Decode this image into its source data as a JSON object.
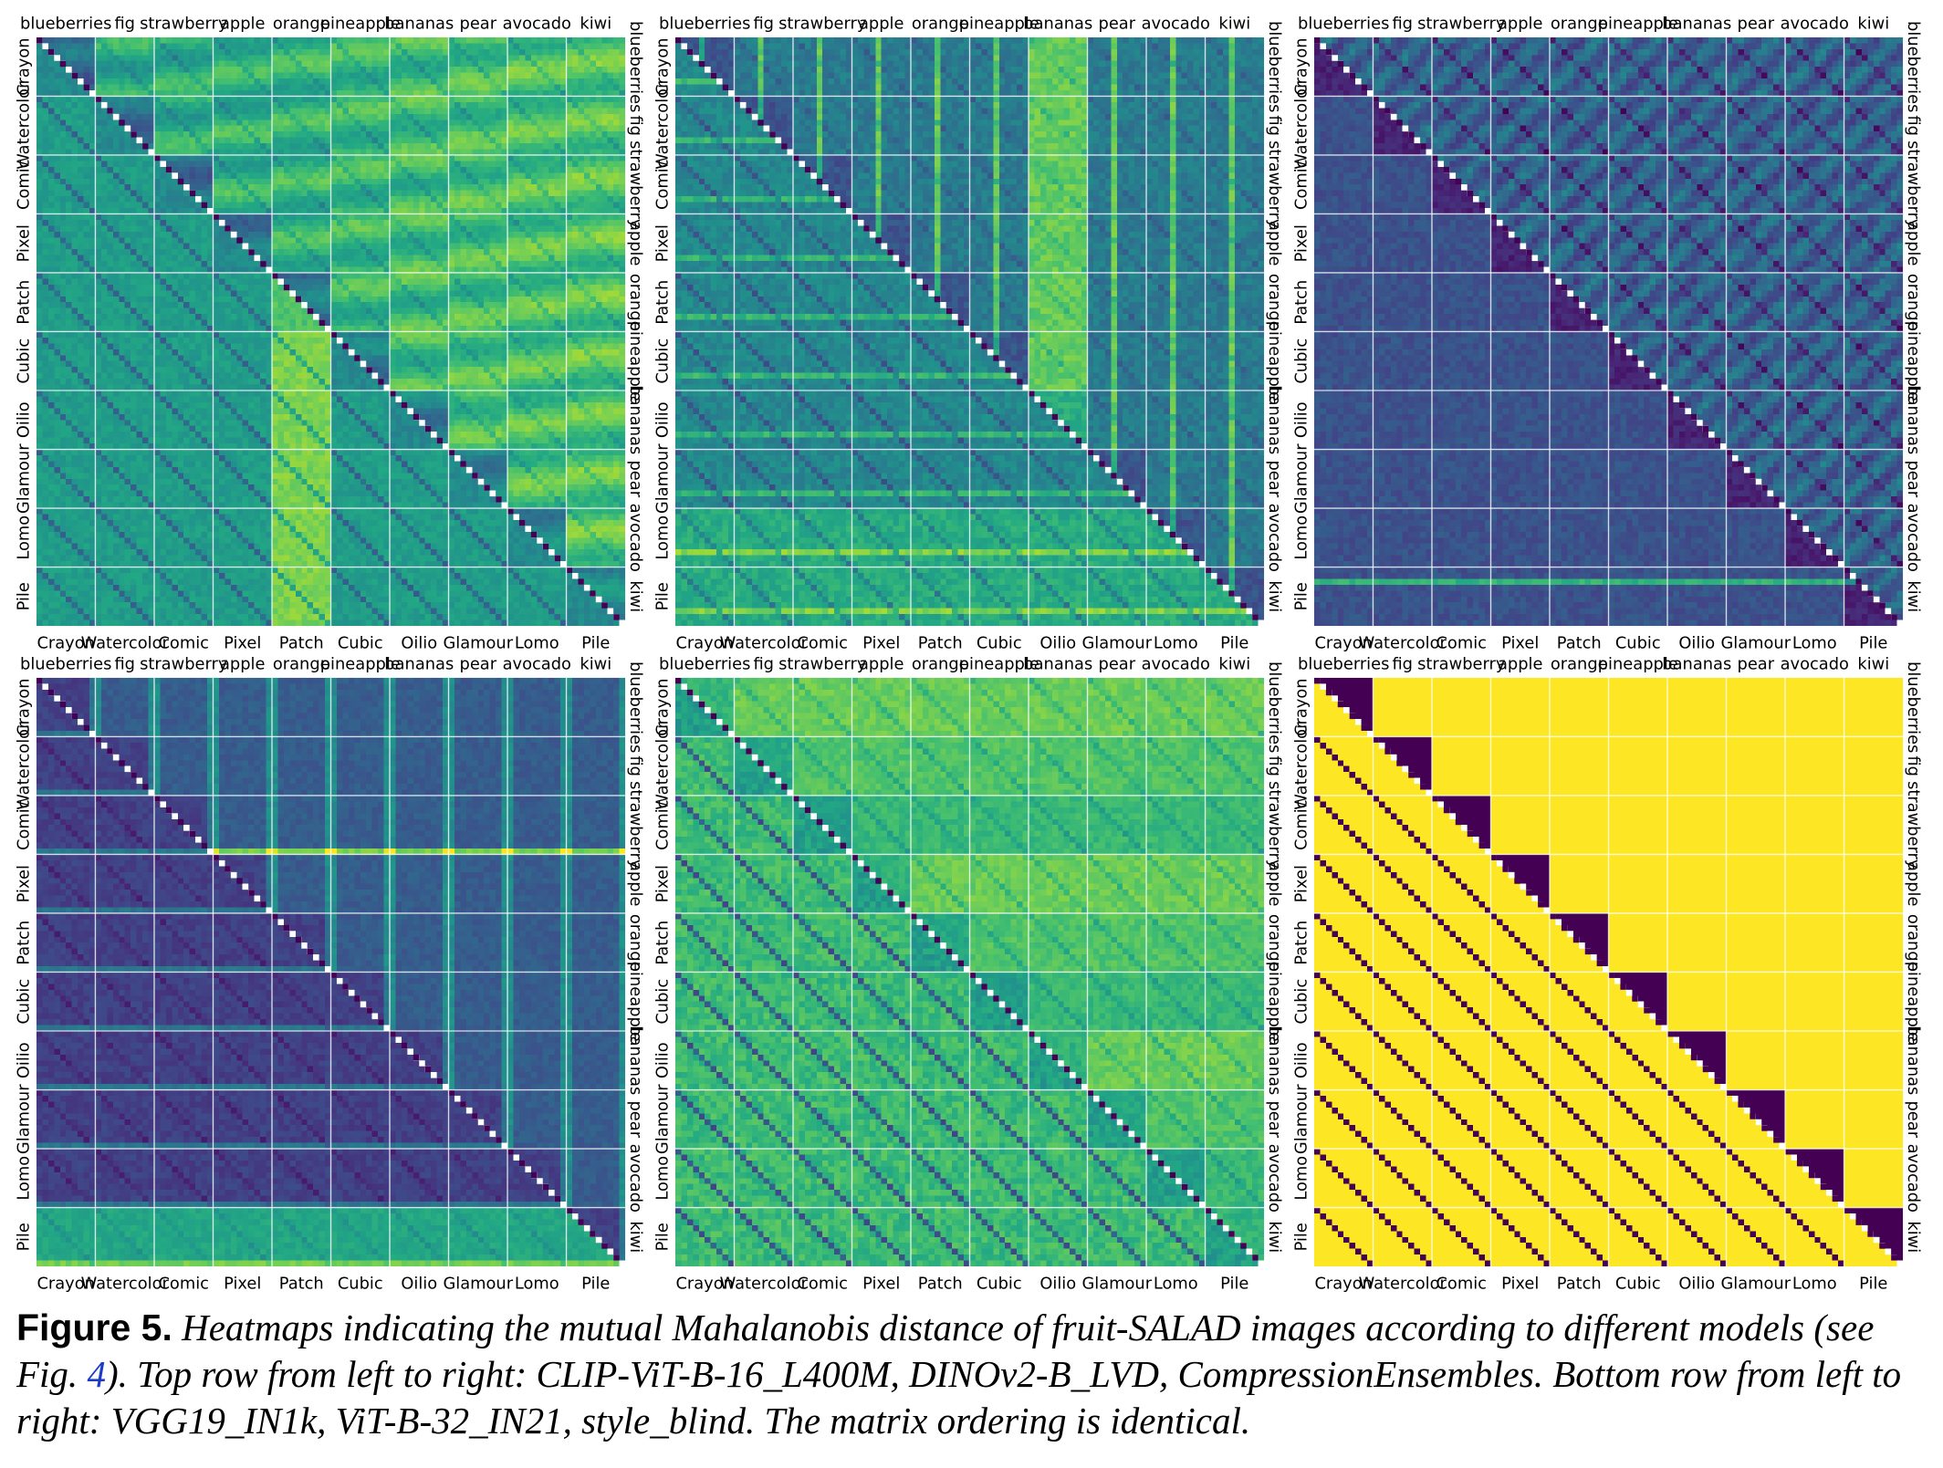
{
  "figure": {
    "label": "Figure 5.",
    "caption_before_ref": " Heatmaps indicating the mutual Mahalanobis distance of fruit-SALAD images according to different models (see Fig. ",
    "caption_ref": "4",
    "caption_after_ref": "). Top row from left to right: CLIP-ViT-B-16_L400M, DINOv2-B_LVD, CompressionEnsembles. Bottom row from left to right: VGG19_IN1k, ViT-B-32_IN21, style_blind. The matrix ordering is identical."
  },
  "axes": {
    "fruits": [
      "blueberries",
      "fig",
      "strawberry",
      "apple",
      "orange",
      "pineapple",
      "bananas",
      "pear",
      "avocado",
      "kiwi"
    ],
    "styles": [
      "Crayon",
      "Watercolor",
      "Comic",
      "Pixel",
      "Patch",
      "Cubic",
      "Oilio",
      "Glamour",
      "Lomo",
      "Pile"
    ]
  },
  "colors": {
    "colormap": "viridis",
    "diagonal_a": "#ffffff",
    "diagonal_b": "#440154",
    "block_line": "#ffffff"
  },
  "chart_data": [
    {
      "type": "heatmap",
      "model": "CLIP-ViT-B-16_L400M",
      "row": "top",
      "position": "left",
      "matrix_size": 100,
      "grid": "10x10 blocks",
      "upper_triangle": "sorted by fruit, then style",
      "lower_triangle": "sorted by style, then fruit",
      "value_range": [
        0.35,
        0.75
      ]
    },
    {
      "type": "heatmap",
      "model": "DINOv2-B_LVD",
      "row": "top",
      "position": "center",
      "matrix_size": 100,
      "grid": "10x10 blocks",
      "upper_triangle": "sorted by fruit, then style",
      "lower_triangle": "sorted by style, then fruit",
      "value_range": [
        0.3,
        0.62
      ]
    },
    {
      "type": "heatmap",
      "model": "CompressionEnsembles",
      "row": "top",
      "position": "right",
      "matrix_size": 100,
      "grid": "10x10 blocks",
      "upper_triangle": "sorted by fruit, then style",
      "lower_triangle": "sorted by style, then fruit",
      "value_range": [
        0.12,
        0.45
      ]
    },
    {
      "type": "heatmap",
      "model": "VGG19_IN1k",
      "row": "bottom",
      "position": "left",
      "matrix_size": 100,
      "grid": "10x10 blocks",
      "upper_triangle": "sorted by fruit, then style",
      "lower_triangle": "sorted by style, then fruit",
      "value_range": [
        0.15,
        0.4
      ]
    },
    {
      "type": "heatmap",
      "model": "ViT-B-32_IN21",
      "row": "bottom",
      "position": "center",
      "matrix_size": 100,
      "grid": "10x10 blocks",
      "upper_triangle": "sorted by fruit, then style",
      "lower_triangle": "sorted by style, then fruit",
      "value_range": [
        0.5,
        0.8
      ]
    },
    {
      "type": "heatmap",
      "model": "style_blind",
      "row": "bottom",
      "position": "right",
      "matrix_size": 100,
      "grid": "10x10 blocks",
      "upper_triangle": "sorted by fruit, then style",
      "lower_triangle": "sorted by style, then fruit",
      "value_range": [
        0.0,
        1.0
      ],
      "pattern": "0 for same fruit, 1 otherwise"
    }
  ]
}
